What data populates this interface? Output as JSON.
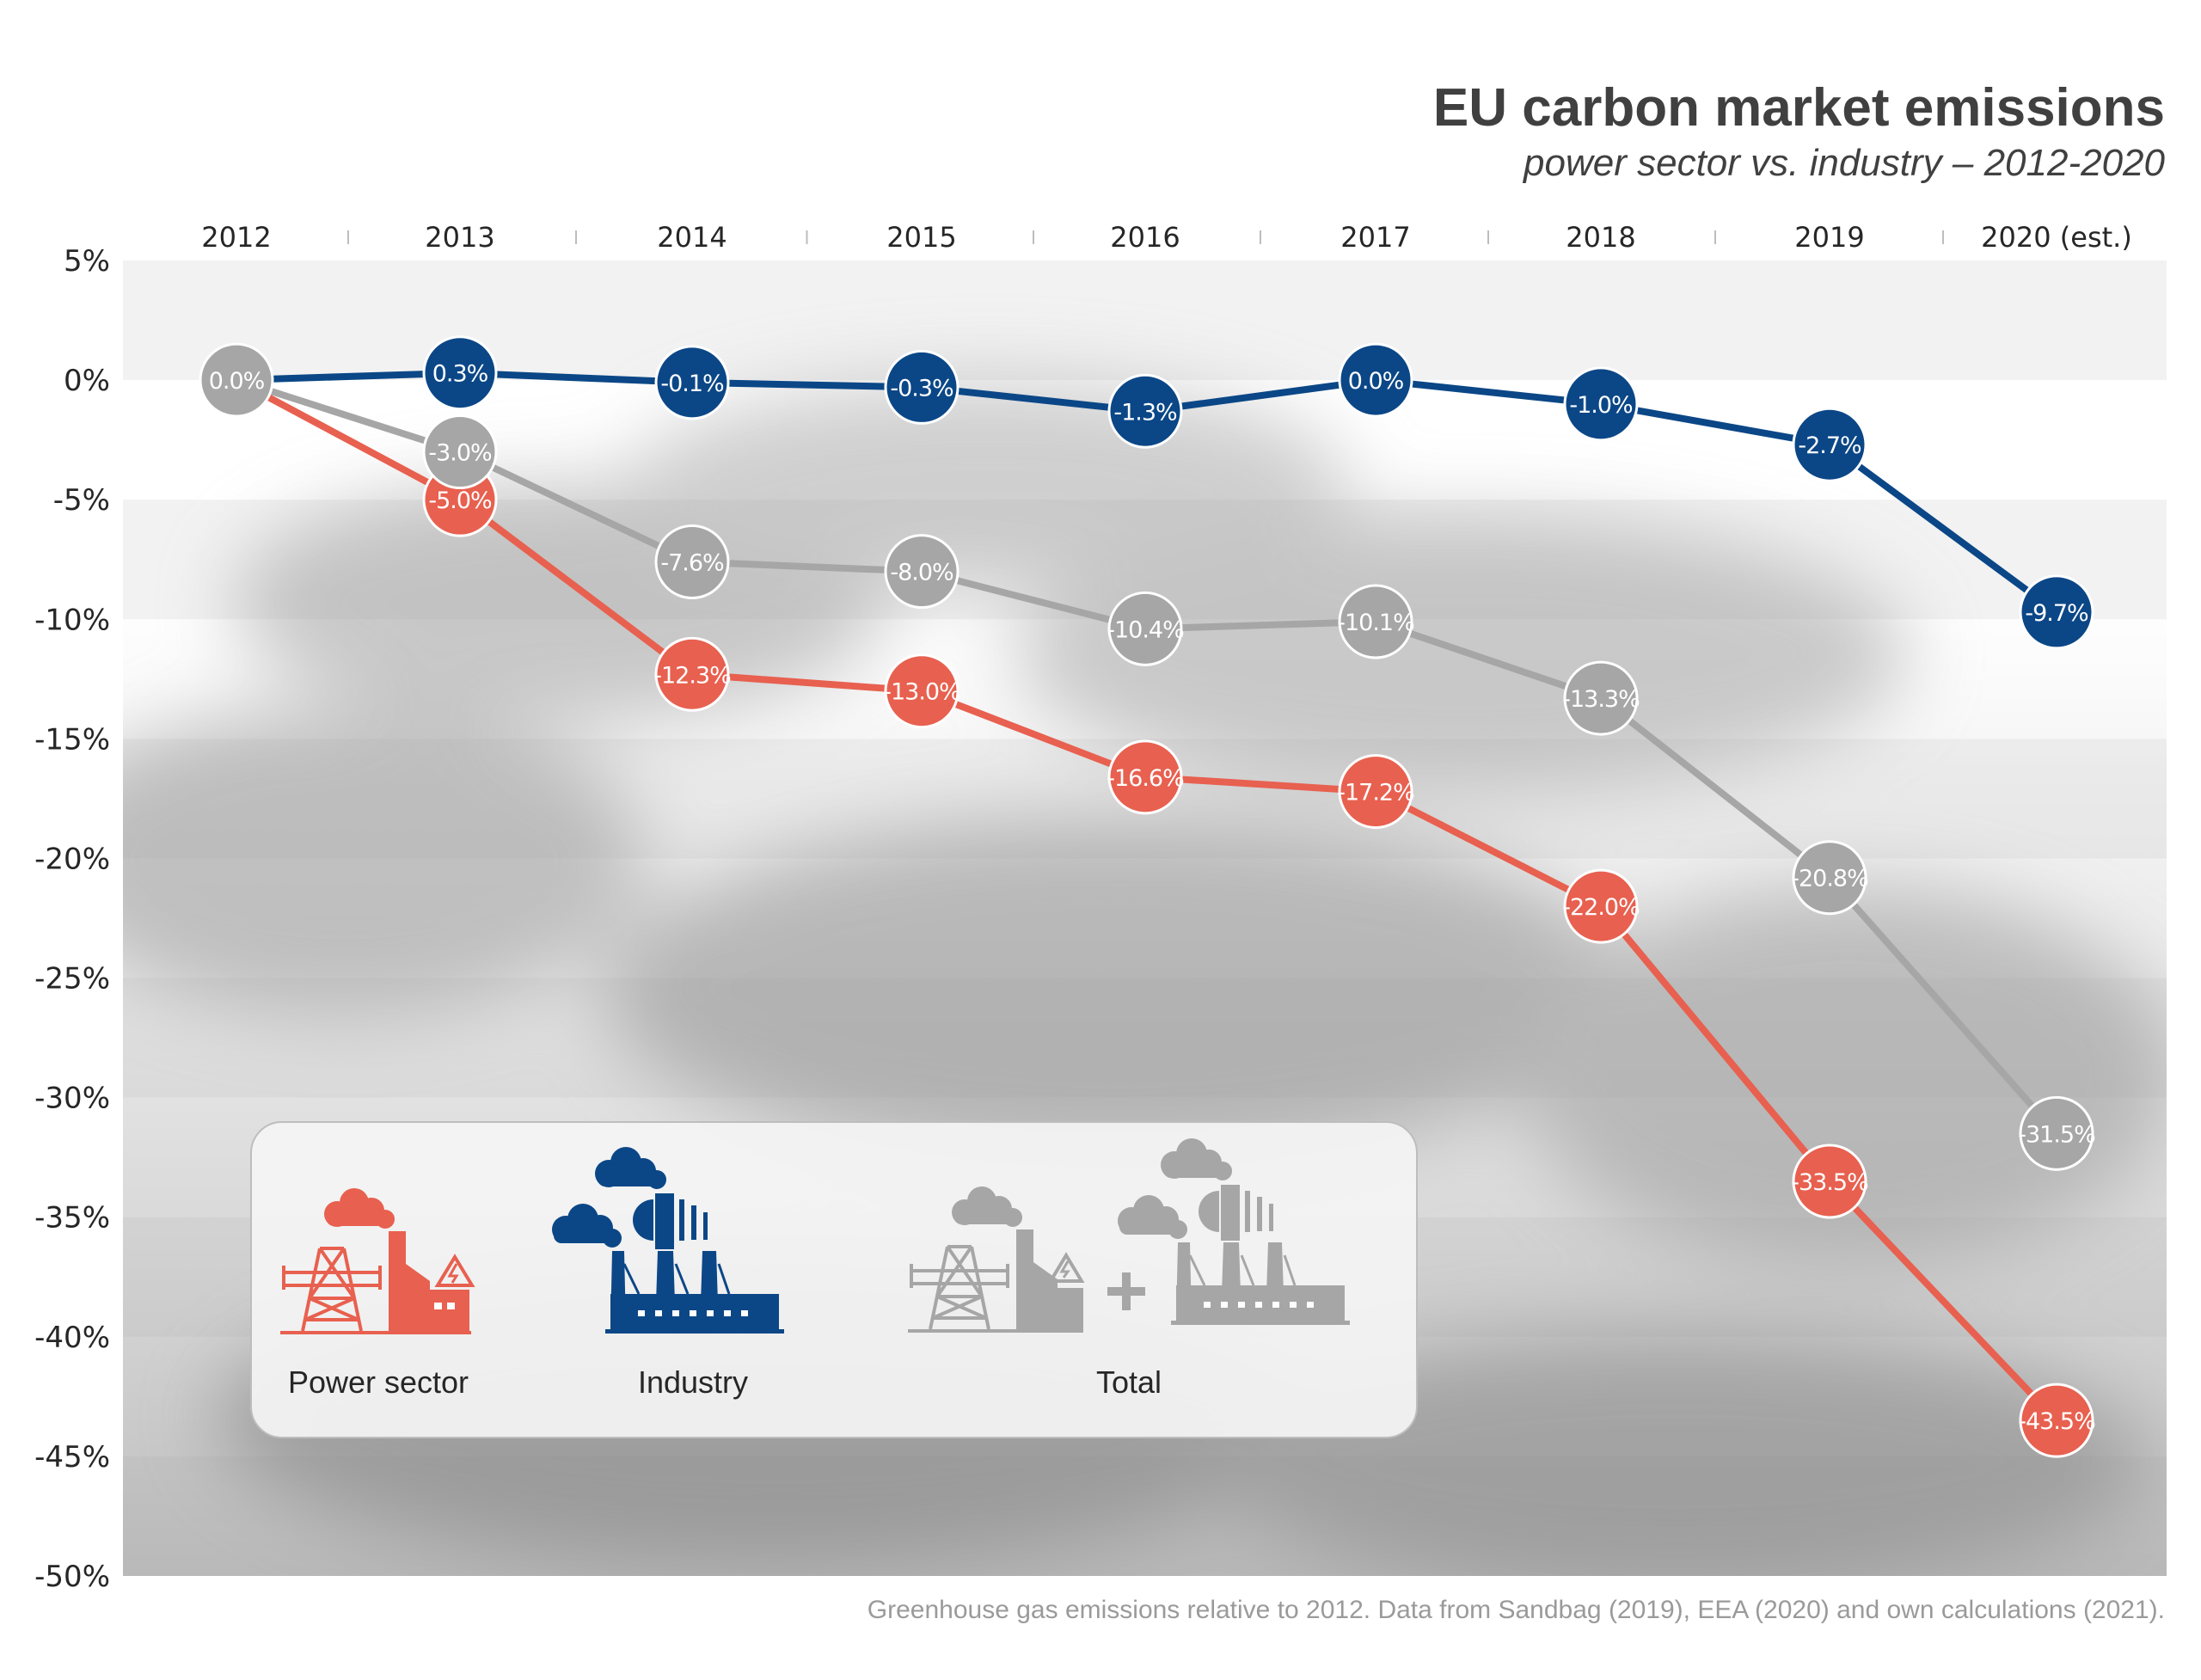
{
  "header": {
    "title": "EU carbon market emissions",
    "subtitle": "power sector vs. industry – 2012-2020"
  },
  "caption": "Greenhouse gas emissions relative to 2012. Data from Sandbag (2019), EEA (2020) and own calculations (2021).",
  "legend": {
    "power": "Power sector",
    "industry": "Industry",
    "total": "Total"
  },
  "colors": {
    "power": "#e8604f",
    "industry": "#0b4787",
    "total": "#a6a6a6"
  },
  "icons": {
    "power": "power-plant-icon",
    "industry": "factory-icon",
    "total": "power-plant-plus-factory-icon"
  },
  "chart_data": {
    "type": "line",
    "x": [
      "2012",
      "2013",
      "2014",
      "2015",
      "2016",
      "2017",
      "2018",
      "2019",
      "2020 (est.)"
    ],
    "ylim": [
      -50,
      5
    ],
    "yticks": [
      {
        "v": 5,
        "label": "5%"
      },
      {
        "v": 0,
        "label": "0%"
      },
      {
        "v": -5,
        "label": "-5%"
      },
      {
        "v": -10,
        "label": "-10%"
      },
      {
        "v": -15,
        "label": "-15%"
      },
      {
        "v": -20,
        "label": "-20%"
      },
      {
        "v": -25,
        "label": "-25%"
      },
      {
        "v": -30,
        "label": "-30%"
      },
      {
        "v": -35,
        "label": "-35%"
      },
      {
        "v": -40,
        "label": "-40%"
      },
      {
        "v": -45,
        "label": "-45%"
      },
      {
        "v": -50,
        "label": "-50%"
      }
    ],
    "grid": "alternating horizontal bands",
    "legend_position": "bottom-left",
    "series": [
      {
        "key": "power",
        "name": "Power sector",
        "values": [
          0.0,
          -5.0,
          -12.3,
          -13.0,
          -16.6,
          -17.2,
          -22.0,
          -33.5,
          -43.5
        ],
        "labels": [
          "",
          "-5.0%",
          "-12.3%",
          "-13.0%",
          "-16.6%",
          "-17.2%",
          "-22.0%",
          "-33.5%",
          "-43.5%"
        ]
      },
      {
        "key": "total",
        "name": "Total",
        "values": [
          0.0,
          -3.0,
          -7.6,
          -8.0,
          -10.4,
          -10.1,
          -13.3,
          -20.8,
          -31.5
        ],
        "labels": [
          "0.0%",
          "-3.0%",
          "-7.6%",
          "-8.0%",
          "-10.4%",
          "-10.1%",
          "-13.3%",
          "-20.8%",
          "-31.5%"
        ]
      },
      {
        "key": "industry",
        "name": "Industry",
        "values": [
          0.0,
          0.3,
          -0.1,
          -0.3,
          -1.3,
          0.0,
          -1.0,
          -2.7,
          -9.7
        ],
        "labels": [
          "",
          "0.3%",
          "-0.1%",
          "-0.3%",
          "-1.3%",
          "0.0%",
          "-1.0%",
          "-2.7%",
          "-9.7%"
        ]
      }
    ]
  }
}
